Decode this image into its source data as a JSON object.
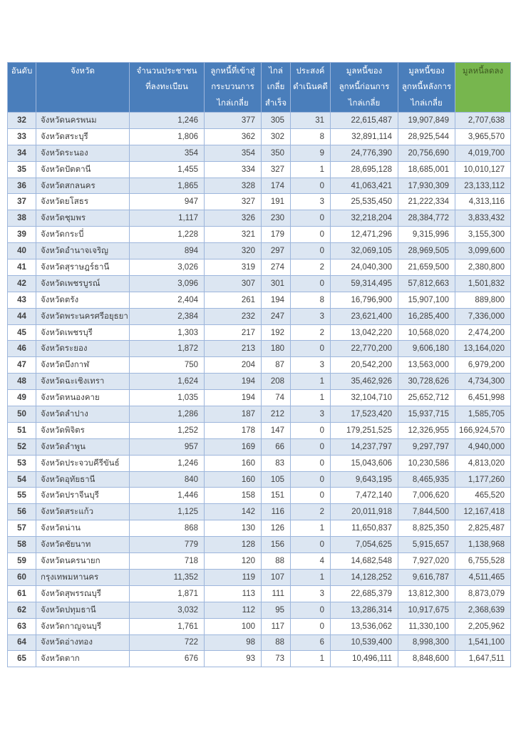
{
  "colors": {
    "header_blue": "#4a7ebb",
    "header_green": "#77b64e",
    "header_text": "#ffffff",
    "header_green_text": "#3e5a21",
    "stripe_blue": "#dce6f2",
    "border": "#9db6dc",
    "body_text": "#404040"
  },
  "table": {
    "columns": [
      {
        "key": "rank",
        "label": "อันดับ"
      },
      {
        "key": "province",
        "label": "จังหวัด"
      },
      {
        "key": "registered",
        "label": "จำนวนประชาชน\nที่ลงทะเบียน"
      },
      {
        "key": "entered",
        "label": "ลูกหนี้ที่เข้าสู่\nกระบวนการ\nไกล่เกลี่ย"
      },
      {
        "key": "success",
        "label": "ไกล่\nเกลี่ย\nสำเร็จ"
      },
      {
        "key": "prosecute",
        "label": "ประสงค์\nดำเนินคดี"
      },
      {
        "key": "debt-before",
        "label": "มูลหนี้ของ\nลูกหนี้ก่อนการ\nไกล่เกลี่ย"
      },
      {
        "key": "debt-after",
        "label": "มูลหนี้ของ\nลูกหนี้หลังการ\nไกล่เกลี่ย"
      },
      {
        "key": "debt-reduced",
        "label": "มูลหนี้ลดลง"
      }
    ],
    "rows": [
      [
        "32",
        "จังหวัดนครพนม",
        "1,246",
        "377",
        "305",
        "31",
        "22,615,487",
        "19,907,849",
        "2,707,638"
      ],
      [
        "33",
        "จังหวัดสระบุรี",
        "1,806",
        "362",
        "302",
        "8",
        "32,891,114",
        "28,925,544",
        "3,965,570"
      ],
      [
        "34",
        "จังหวัดระนอง",
        "354",
        "354",
        "350",
        "9",
        "24,776,390",
        "20,756,690",
        "4,019,700"
      ],
      [
        "35",
        "จังหวัดปัตตานี",
        "1,455",
        "334",
        "327",
        "1",
        "28,695,128",
        "18,685,001",
        "10,010,127"
      ],
      [
        "36",
        "จังหวัดสกลนคร",
        "1,865",
        "328",
        "174",
        "0",
        "41,063,421",
        "17,930,309",
        "23,133,112"
      ],
      [
        "37",
        "จังหวัดยโสธร",
        "947",
        "327",
        "191",
        "3",
        "25,535,450",
        "21,222,334",
        "4,313,116"
      ],
      [
        "38",
        "จังหวัดชุมพร",
        "1,117",
        "326",
        "230",
        "0",
        "32,218,204",
        "28,384,772",
        "3,833,432"
      ],
      [
        "39",
        "จังหวัดกระบี่",
        "1,228",
        "321",
        "179",
        "0",
        "12,471,296",
        "9,315,996",
        "3,155,300"
      ],
      [
        "40",
        "จังหวัดอำนาจเจริญ",
        "894",
        "320",
        "297",
        "0",
        "32,069,105",
        "28,969,505",
        "3,099,600"
      ],
      [
        "41",
        "จังหวัดสุราษฎร์ธานี",
        "3,026",
        "319",
        "274",
        "2",
        "24,040,300",
        "21,659,500",
        "2,380,800"
      ],
      [
        "42",
        "จังหวัดเพชรบูรณ์",
        "3,096",
        "307",
        "301",
        "0",
        "59,314,495",
        "57,812,663",
        "1,501,832"
      ],
      [
        "43",
        "จังหวัดตรัง",
        "2,404",
        "261",
        "194",
        "8",
        "16,796,900",
        "15,907,100",
        "889,800"
      ],
      [
        "44",
        "จังหวัดพระนครศรีอยุธยา",
        "2,384",
        "232",
        "247",
        "3",
        "23,621,400",
        "16,285,400",
        "7,336,000"
      ],
      [
        "45",
        "จังหวัดเพชรบุรี",
        "1,303",
        "217",
        "192",
        "2",
        "13,042,220",
        "10,568,020",
        "2,474,200"
      ],
      [
        "46",
        "จังหวัดระยอง",
        "1,872",
        "213",
        "180",
        "0",
        "22,770,200",
        "9,606,180",
        "13,164,020"
      ],
      [
        "47",
        "จังหวัดบึงกาฬ",
        "750",
        "204",
        "87",
        "3",
        "20,542,200",
        "13,563,000",
        "6,979,200"
      ],
      [
        "48",
        "จังหวัดฉะเชิงเทรา",
        "1,624",
        "194",
        "208",
        "1",
        "35,462,926",
        "30,728,626",
        "4,734,300"
      ],
      [
        "49",
        "จังหวัดหนองคาย",
        "1,035",
        "194",
        "74",
        "1",
        "32,104,710",
        "25,652,712",
        "6,451,998"
      ],
      [
        "50",
        "จังหวัดลำปาง",
        "1,286",
        "187",
        "212",
        "3",
        "17,523,420",
        "15,937,715",
        "1,585,705"
      ],
      [
        "51",
        "จังหวัดพิจิตร",
        "1,252",
        "178",
        "147",
        "0",
        "179,251,525",
        "12,326,955",
        "166,924,570"
      ],
      [
        "52",
        "จังหวัดลำพูน",
        "957",
        "169",
        "66",
        "0",
        "14,237,797",
        "9,297,797",
        "4,940,000"
      ],
      [
        "53",
        "จังหวัดประจวบคีรีขันธ์",
        "1,246",
        "160",
        "83",
        "0",
        "15,043,606",
        "10,230,586",
        "4,813,020"
      ],
      [
        "54",
        "จังหวัดอุทัยธานี",
        "840",
        "160",
        "105",
        "0",
        "9,643,195",
        "8,465,935",
        "1,177,260"
      ],
      [
        "55",
        "จังหวัดปราจีนบุรี",
        "1,446",
        "158",
        "151",
        "0",
        "7,472,140",
        "7,006,620",
        "465,520"
      ],
      [
        "56",
        "จังหวัดสระแก้ว",
        "1,125",
        "142",
        "116",
        "2",
        "20,011,918",
        "7,844,500",
        "12,167,418"
      ],
      [
        "57",
        "จังหวัดน่าน",
        "868",
        "130",
        "126",
        "1",
        "11,650,837",
        "8,825,350",
        "2,825,487"
      ],
      [
        "58",
        "จังหวัดชัยนาท",
        "779",
        "128",
        "156",
        "0",
        "7,054,625",
        "5,915,657",
        "1,138,968"
      ],
      [
        "59",
        "จังหวัดนครนายก",
        "718",
        "120",
        "88",
        "4",
        "14,682,548",
        "7,927,020",
        "6,755,528"
      ],
      [
        "60",
        "กรุงเทพมหานคร",
        "11,352",
        "119",
        "107",
        "1",
        "14,128,252",
        "9,616,787",
        "4,511,465"
      ],
      [
        "61",
        "จังหวัดสุพรรณบุรี",
        "1,871",
        "113",
        "111",
        "3",
        "22,685,379",
        "13,812,300",
        "8,873,079"
      ],
      [
        "62",
        "จังหวัดปทุมธานี",
        "3,032",
        "112",
        "95",
        "0",
        "13,286,314",
        "10,917,675",
        "2,368,639"
      ],
      [
        "63",
        "จังหวัดกาญจนบุรี",
        "1,761",
        "100",
        "117",
        "0",
        "13,536,062",
        "11,330,100",
        "2,205,962"
      ],
      [
        "64",
        "จังหวัดอ่างทอง",
        "722",
        "98",
        "88",
        "6",
        "10,539,400",
        "8,998,300",
        "1,541,100"
      ],
      [
        "65",
        "จังหวัดตาก",
        "676",
        "93",
        "73",
        "1",
        "10,496,111",
        "8,848,600",
        "1,647,511"
      ]
    ]
  }
}
